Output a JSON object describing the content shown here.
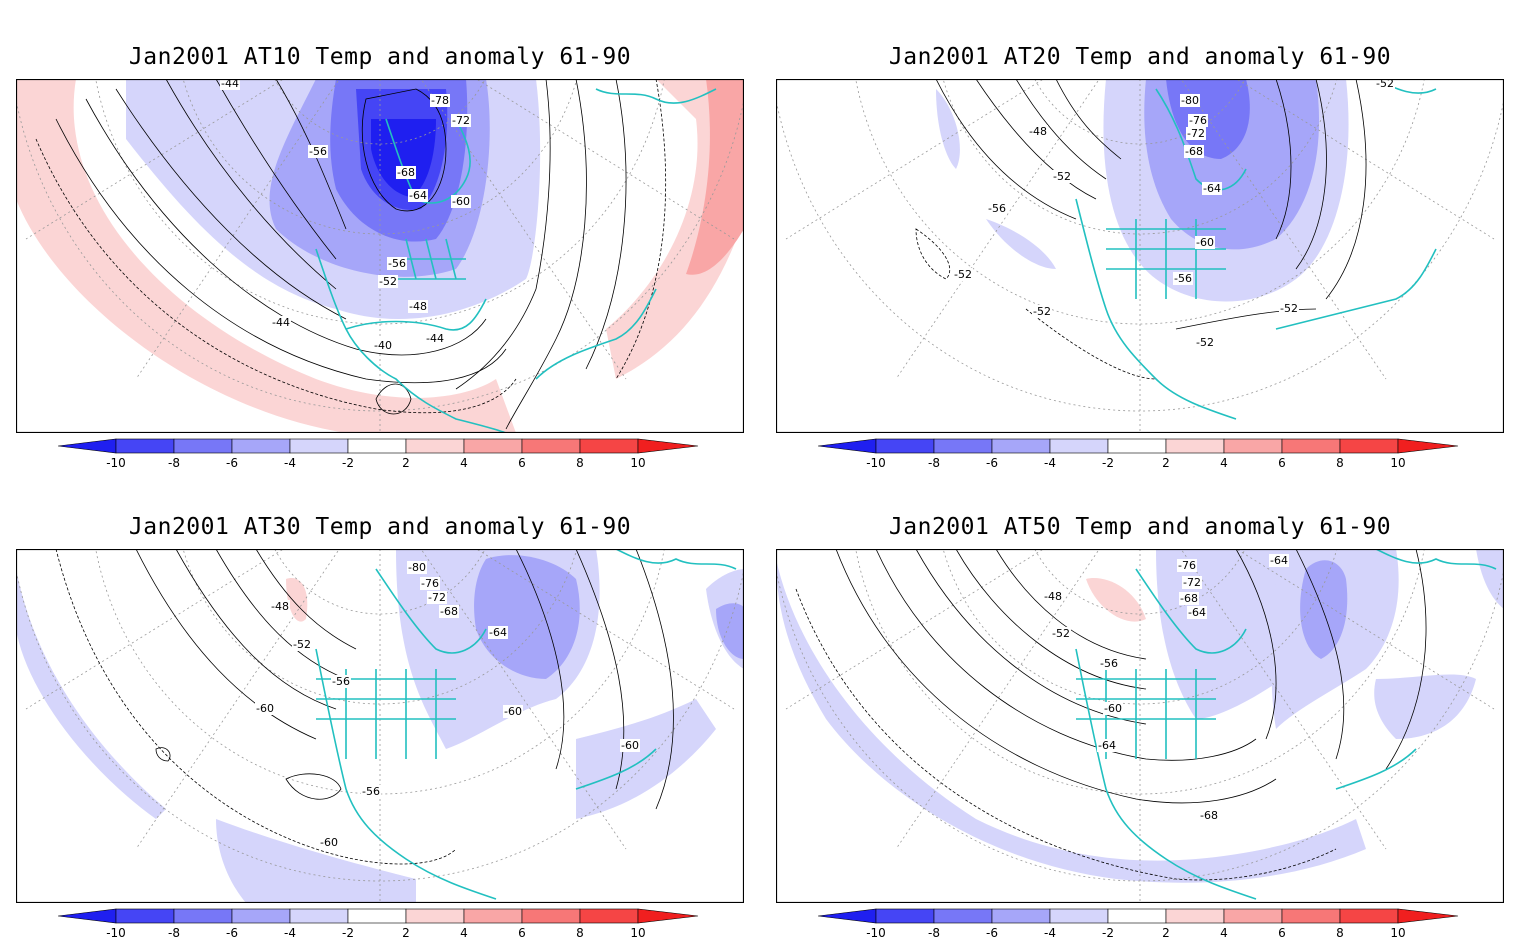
{
  "colorbar": {
    "ticks": [
      "-10",
      "-8",
      "-6",
      "-4",
      "-2",
      "2",
      "4",
      "6",
      "8",
      "10"
    ],
    "colors": [
      "#1f1ff0",
      "#4545f5",
      "#7777f7",
      "#a6a6f9",
      "#d5d5fb",
      "#ffffff",
      "#fbd5d5",
      "#f9a6a6",
      "#f77777",
      "#f54545",
      "#f01f1f"
    ]
  },
  "coast_color": "#22c0c0",
  "panels": [
    {
      "title": "Jan2001 AT10 Temp and anomaly 61-90",
      "contour_labels": [
        "-44",
        "-78",
        "-72",
        "-56",
        "-68",
        "-64",
        "-60",
        "-56",
        "-52",
        "-48",
        "-44",
        "-44",
        "-40"
      ]
    },
    {
      "title": "Jan2001 AT20 Temp and anomaly 61-90",
      "contour_labels": [
        "-80",
        "-52",
        "-76",
        "-72",
        "-48",
        "-68",
        "-52",
        "-64",
        "-56",
        "-60",
        "-52",
        "-56",
        "-52",
        "-52",
        "-52"
      ]
    },
    {
      "title": "Jan2001 AT30 Temp and anomaly 61-90",
      "contour_labels": [
        "-80",
        "-76",
        "-72",
        "-48",
        "-68",
        "-64",
        "-52",
        "-56",
        "-60",
        "-60",
        "-60",
        "-56",
        "-60"
      ]
    },
    {
      "title": "Jan2001 AT50 Temp and anomaly 61-90",
      "contour_labels": [
        "-76",
        "-64",
        "-72",
        "-48",
        "-68",
        "-64",
        "-52",
        "-56",
        "-60",
        "-64",
        "-68"
      ]
    }
  ]
}
